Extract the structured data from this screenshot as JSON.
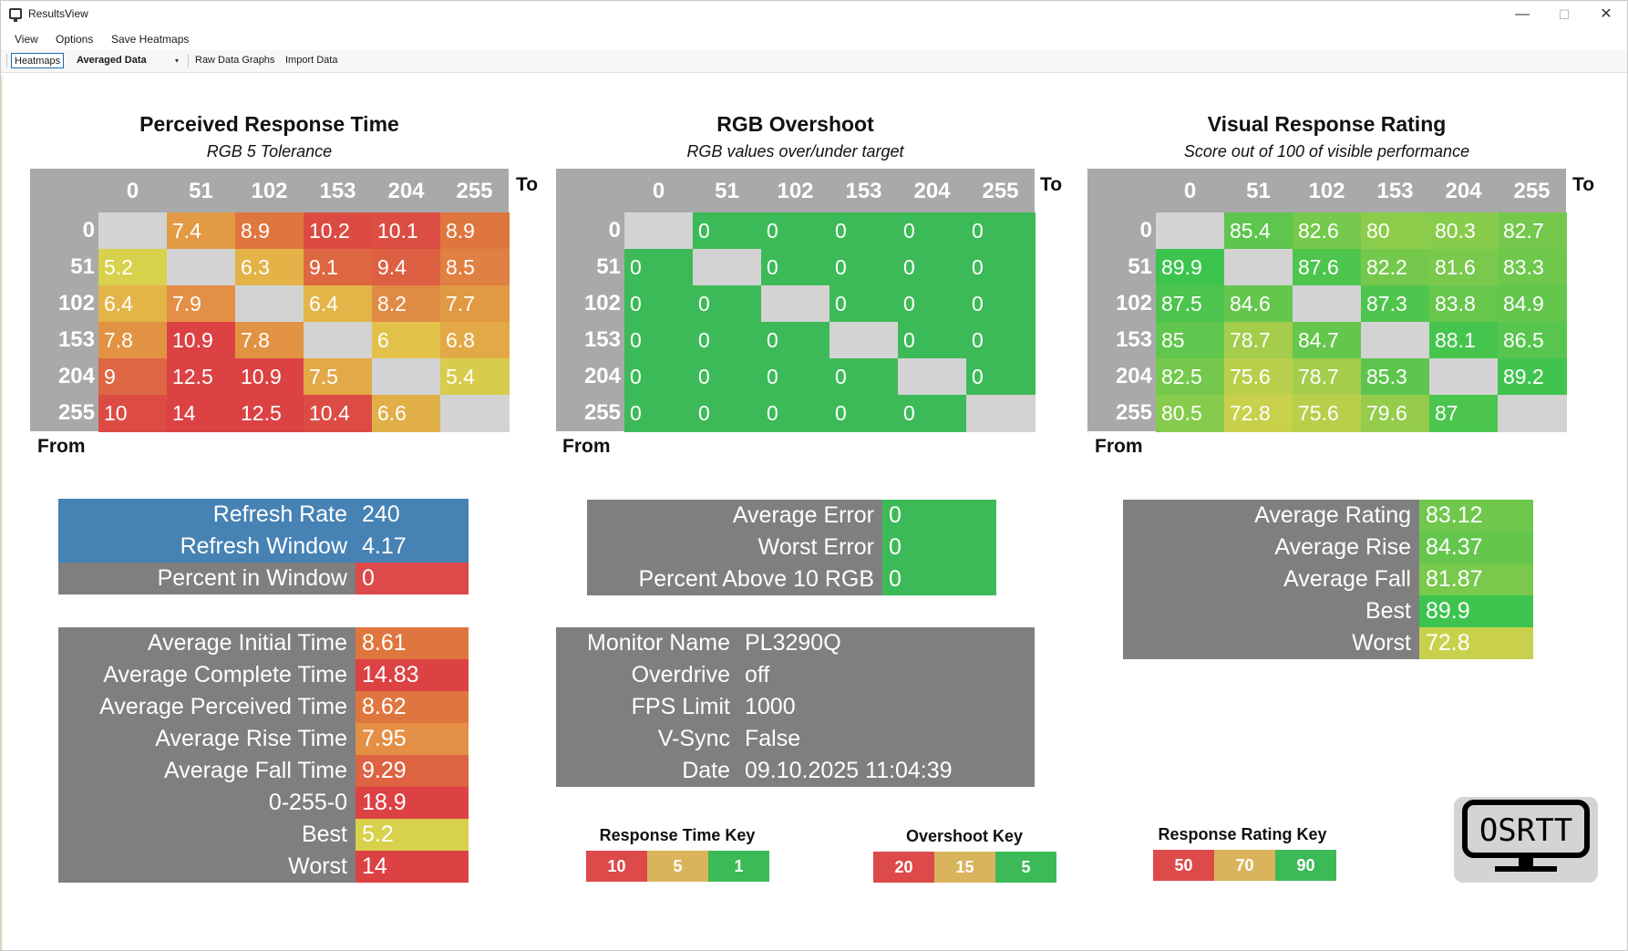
{
  "window": {
    "title": "ResultsView",
    "min": "—",
    "max": "☐",
    "close": "✕"
  },
  "menu": [
    "View",
    "Options",
    "Save Heatmaps"
  ],
  "toolbar": {
    "heatmaps": "Heatmaps",
    "dropdown": "Averaged Data",
    "dropdown_caret": "▾",
    "raw": "Raw Data Graphs",
    "import": "Import Data"
  },
  "colors": {
    "panel_grey": "#7f7f7f",
    "header_grey": "#a9a9a9",
    "diag_grey": "#d3d3d3",
    "refresh_blue": "#4682b4",
    "red": "#dc4a4a",
    "yellow": "#d7d34b",
    "green": "#3dba58"
  },
  "heatmaps": [
    {
      "title": "Perceived Response Time",
      "subtitle": "RGB 5 Tolerance",
      "to": "To",
      "from": "From",
      "columns": [
        "0",
        "51",
        "102",
        "153",
        "204",
        "255"
      ],
      "rows": [
        "0",
        "51",
        "102",
        "153",
        "204",
        "255"
      ],
      "values": [
        [
          "",
          "7.4",
          "8.9",
          "10.2",
          "10.1",
          "8.9"
        ],
        [
          "5.2",
          "",
          "6.3",
          "9.1",
          "9.4",
          "8.5"
        ],
        [
          "6.4",
          "7.9",
          "",
          "6.4",
          "8.2",
          "7.7"
        ],
        [
          "7.8",
          "10.9",
          "7.8",
          "",
          "6",
          "6.8"
        ],
        [
          "9",
          "12.5",
          "10.9",
          "7.5",
          "",
          "5.4"
        ],
        [
          "10",
          "14",
          "12.5",
          "10.4",
          "6.6",
          ""
        ]
      ],
      "colors": [
        [
          "",
          "#e29a45",
          "#e0763f",
          "#dc4b43",
          "#dc4d43",
          "#e0763f"
        ],
        [
          "#d7d14b",
          "",
          "#e3b348",
          "#de6742",
          "#de6042",
          "#e08042"
        ],
        [
          "#e3b549",
          "#e38f45",
          "",
          "#e3b549",
          "#e08b44",
          "#e19943"
        ],
        [
          "#e19343",
          "#dc4244",
          "#e19343",
          "",
          "#e2c14b",
          "#e3a947"
        ],
        [
          "#de6743",
          "#dc4244",
          "#dc4244",
          "#e3a947",
          "",
          "#d7cc4b"
        ],
        [
          "#dc4c44",
          "#dc4244",
          "#dc4244",
          "#dc4c44",
          "#e1af48",
          ""
        ]
      ]
    },
    {
      "title": "RGB Overshoot",
      "subtitle": "RGB values over/under target",
      "to": "To",
      "from": "From",
      "columns": [
        "0",
        "51",
        "102",
        "153",
        "204",
        "255"
      ],
      "rows": [
        "0",
        "51",
        "102",
        "153",
        "204",
        "255"
      ],
      "values": [
        [
          "",
          "0",
          "0",
          "0",
          "0",
          "0"
        ],
        [
          "0",
          "",
          "0",
          "0",
          "0",
          "0"
        ],
        [
          "0",
          "0",
          "",
          "0",
          "0",
          "0"
        ],
        [
          "0",
          "0",
          "0",
          "",
          "0",
          "0"
        ],
        [
          "0",
          "0",
          "0",
          "0",
          "",
          "0"
        ],
        [
          "0",
          "0",
          "0",
          "0",
          "0",
          ""
        ]
      ],
      "colors": [
        [
          "",
          "#3dba58",
          "#3dba58",
          "#3dba58",
          "#3dba58",
          "#3dba58"
        ],
        [
          "#3dba58",
          "",
          "#3dba58",
          "#3dba58",
          "#3dba58",
          "#3dba58"
        ],
        [
          "#3dba58",
          "#3dba58",
          "",
          "#3dba58",
          "#3dba58",
          "#3dba58"
        ],
        [
          "#3dba58",
          "#3dba58",
          "#3dba58",
          "",
          "#3dba58",
          "#3dba58"
        ],
        [
          "#3dba58",
          "#3dba58",
          "#3dba58",
          "#3dba58",
          "",
          "#3dba58"
        ],
        [
          "#3dba58",
          "#3dba58",
          "#3dba58",
          "#3dba58",
          "#3dba58",
          ""
        ]
      ]
    },
    {
      "title": "Visual Response Rating",
      "subtitle": "Score out of 100 of visible performance",
      "to": "To",
      "from": "From",
      "columns": [
        "0",
        "51",
        "102",
        "153",
        "204",
        "255"
      ],
      "rows": [
        "0",
        "51",
        "102",
        "153",
        "204",
        "255"
      ],
      "values": [
        [
          "",
          "85.4",
          "82.6",
          "80",
          "80.3",
          "82.7"
        ],
        [
          "89.9",
          "",
          "87.6",
          "82.2",
          "81.6",
          "83.3"
        ],
        [
          "87.5",
          "84.6",
          "",
          "87.3",
          "83.8",
          "84.9"
        ],
        [
          "85",
          "78.7",
          "84.7",
          "",
          "88.1",
          "86.5"
        ],
        [
          "82.5",
          "75.6",
          "78.7",
          "85.3",
          "",
          "89.2"
        ],
        [
          "80.5",
          "72.8",
          "75.6",
          "79.6",
          "87",
          ""
        ]
      ],
      "colors": [
        [
          "",
          "#5ec54e",
          "#75c94c",
          "#8ccc4b",
          "#89cc4b",
          "#74c94c"
        ],
        [
          "#3dc44f",
          "",
          "#4ec54d",
          "#74c94c",
          "#79c94c",
          "#6ec84c"
        ],
        [
          "#4cc44e",
          "#65c64d",
          "",
          "#4fc54d",
          "#67c74c",
          "#62c64d"
        ],
        [
          "#60c64d",
          "#a3cd4b",
          "#64c64d",
          "",
          "#45c54e",
          "#57c54e"
        ],
        [
          "#74c94c",
          "#b9cf4b",
          "#a3cd4b",
          "#5dc54e",
          "",
          "#40c44f"
        ],
        [
          "#86cb4b",
          "#c9d04b",
          "#b9cf4b",
          "#95cc4b",
          "#4cc54e",
          ""
        ]
      ]
    }
  ],
  "refresh": {
    "rows": [
      {
        "label": "Refresh Rate",
        "value": "240"
      },
      {
        "label": "Refresh Window",
        "value": "4.17"
      },
      {
        "label": "Percent in Window",
        "value": "0",
        "color": "#dc4a4a"
      }
    ]
  },
  "response_stats": {
    "rows": [
      {
        "label": "Average Initial Time",
        "value": "8.61",
        "color": "#e0763f"
      },
      {
        "label": "Average Complete Time",
        "value": "14.83",
        "color": "#dc4244"
      },
      {
        "label": "Average Perceived Time",
        "value": "8.62",
        "color": "#e0763f"
      },
      {
        "label": "Average Rise Time",
        "value": "7.95",
        "color": "#e38f45"
      },
      {
        "label": "Average Fall Time",
        "value": "9.29",
        "color": "#de6342"
      },
      {
        "label": "0-255-0",
        "value": "18.9",
        "color": "#dc4244"
      },
      {
        "label": "Best",
        "value": "5.2",
        "color": "#d7d14b"
      },
      {
        "label": "Worst",
        "value": "14",
        "color": "#dc4244"
      }
    ]
  },
  "overshoot_stats": {
    "rows": [
      {
        "label": "Average Error",
        "value": "0"
      },
      {
        "label": "Worst Error",
        "value": "0"
      },
      {
        "label": "Percent Above 10 RGB",
        "value": "0"
      }
    ]
  },
  "monitor": {
    "rows": [
      {
        "label": "Monitor Name",
        "value": "PL3290Q"
      },
      {
        "label": "Overdrive",
        "value": "off"
      },
      {
        "label": "FPS Limit",
        "value": "1000"
      },
      {
        "label": "V-Sync",
        "value": "False"
      },
      {
        "label": "Date",
        "value": "09.10.2025 11:04:39"
      }
    ]
  },
  "rating_stats": {
    "rows": [
      {
        "label": "Average Rating",
        "value": "83.12",
        "color": "#6fc84c"
      },
      {
        "label": "Average Rise",
        "value": "84.37",
        "color": "#65c64d"
      },
      {
        "label": "Average Fall",
        "value": "81.87",
        "color": "#78c94c"
      },
      {
        "label": "Best",
        "value": "89.9",
        "color": "#3dc44f"
      },
      {
        "label": "Worst",
        "value": "72.8",
        "color": "#c9d04b"
      }
    ]
  },
  "keys": [
    {
      "title": "Response Time Key",
      "items": [
        {
          "label": "10",
          "color": "#dc4a4a"
        },
        {
          "label": "5",
          "color": "#d9b45c"
        },
        {
          "label": "1",
          "color": "#3dba58"
        }
      ]
    },
    {
      "title": "Overshoot Key",
      "items": [
        {
          "label": "20",
          "color": "#dc4a4a"
        },
        {
          "label": "15",
          "color": "#d9b45c"
        },
        {
          "label": "5",
          "color": "#3dba58"
        }
      ]
    },
    {
      "title": "Response Rating Key",
      "items": [
        {
          "label": "50",
          "color": "#dc4a4a"
        },
        {
          "label": "70",
          "color": "#d9b45c"
        },
        {
          "label": "90",
          "color": "#3dba58"
        }
      ]
    }
  ],
  "logo": {
    "text": "OSRTT"
  }
}
